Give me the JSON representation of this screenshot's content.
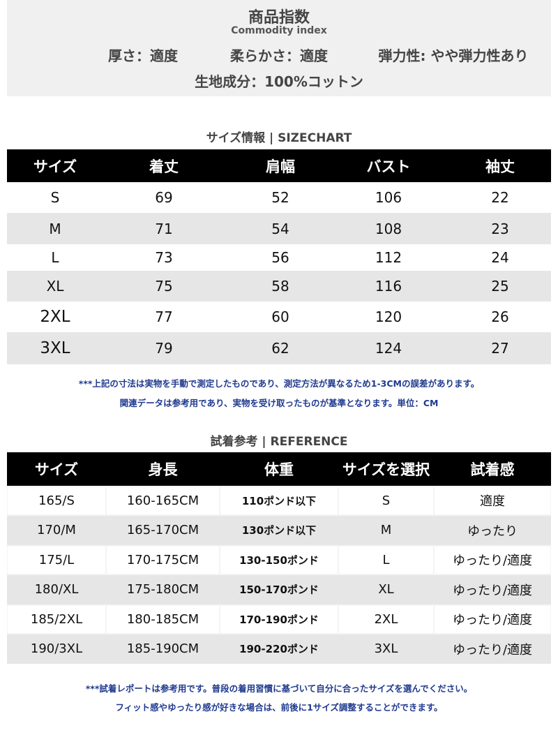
{
  "index": {
    "title": "商品指数",
    "subtitle": "Commodity index",
    "attributes": [
      "厚さ：適度",
      "柔らかさ：適度",
      "弾力性: やや弾力性あり"
    ],
    "material": "生地成分：100%コットン"
  },
  "size_chart": {
    "heading": "サイズ情報 | SIZECHART",
    "header": [
      "サイズ",
      "着丈",
      "肩幅",
      "バスト",
      "袖丈"
    ],
    "rows": [
      [
        "S",
        69,
        52,
        106,
        22
      ],
      [
        "M",
        71,
        54,
        108,
        23
      ],
      [
        "L",
        73,
        56,
        112,
        24
      ],
      [
        "XL",
        75,
        58,
        116,
        25
      ],
      [
        "2XL",
        77,
        60,
        120,
        26
      ],
      [
        "3XL",
        79,
        62,
        124,
        27
      ]
    ],
    "notes": [
      "***上記の寸法は実物を手動で測定したものであり、測定方法が異なるため1-3CMの誤差があります。",
      "関連データは参考用であり、実物を受け取ったものが基準となります。単位：CM"
    ]
  },
  "reference": {
    "heading": "試着参考 | REFERENCE",
    "header": [
      "サイズ",
      "身長",
      "体重",
      "サイズを選択",
      "試着感"
    ],
    "rows": [
      [
        "165/S",
        "160-165CM",
        "110ポンド以下",
        "S",
        "適度"
      ],
      [
        "170/M",
        "165-170CM",
        "130ポンド以下",
        "M",
        "ゆったり"
      ],
      [
        "175/L",
        "170-175CM",
        "130-150ポンド",
        "L",
        "ゆったり/適度"
      ],
      [
        "180/XL",
        "175-180CM",
        "150-170ポンド",
        "XL",
        "ゆったり/適度"
      ],
      [
        "185/2XL",
        "180-185CM",
        "170-190ポンド",
        "2XL",
        "ゆったり/適度"
      ],
      [
        "190/3XL",
        "185-190CM",
        "190-220ポンド",
        "3XL",
        "ゆったり/適度"
      ]
    ],
    "notes": [
      "***試着レポートは参考用です。普段の着用習慣に基づいて自分に合ったサイズを選んでください。",
      "フィット感やゆったり感が好きな場合は、前後に1サイズ調整することができます。"
    ]
  }
}
